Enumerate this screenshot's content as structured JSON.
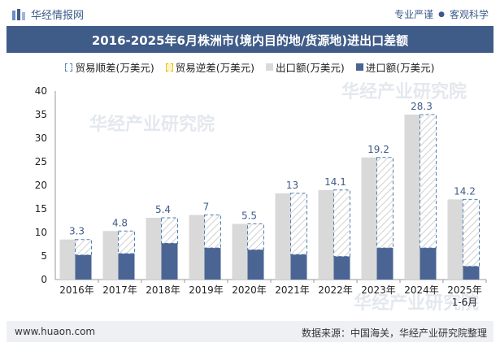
{
  "header": {
    "brand": "华经情报网",
    "tags": [
      "专业严谨",
      "客观科学"
    ]
  },
  "title": "2016-2025年6月株洲市(境内目的地/货源地)进出口差额",
  "legend": [
    {
      "key": "surplus",
      "label": "贸易顺差(万美元)"
    },
    {
      "key": "deficit",
      "label": "贸易逆差(万美元)"
    },
    {
      "key": "export",
      "label": "出口额(万美元)"
    },
    {
      "key": "import",
      "label": "进口额(万美元)"
    }
  ],
  "watermark": "华经产业研究院",
  "footer": {
    "site": "www.huaon.com",
    "source": "数据来源：中国海关，华经产业研究院整理"
  },
  "chart_data": {
    "type": "bar",
    "title": "2016-2025年6月株洲市(境内目的地/货源地)进出口差额",
    "categories": [
      "2016年",
      "2017年",
      "2018年",
      "2019年",
      "2020年",
      "2021年",
      "2022年",
      "2023年",
      "2024年",
      "2025年\n1-6月"
    ],
    "series": [
      {
        "name": "出口额(万美元)",
        "values": [
          8.5,
          10.3,
          13.1,
          13.7,
          11.8,
          18.3,
          19.0,
          25.9,
          35.0,
          17.0
        ]
      },
      {
        "name": "进口额(万美元)",
        "values": [
          5.2,
          5.5,
          7.7,
          6.7,
          6.3,
          5.3,
          4.9,
          6.7,
          6.7,
          2.8
        ]
      },
      {
        "name": "贸易顺差(万美元)",
        "values": [
          3.3,
          4.8,
          5.4,
          7,
          5.5,
          13,
          14.1,
          19.2,
          28.3,
          14.2
        ]
      },
      {
        "name": "贸易逆差(万美元)",
        "values": [
          0,
          0,
          0,
          0,
          0,
          0,
          0,
          0,
          0,
          0
        ]
      }
    ],
    "ylim": [
      0,
      40
    ],
    "yticks": [
      0,
      5,
      10,
      15,
      20,
      25,
      30,
      35,
      40
    ],
    "grid": false,
    "legend_position": "top",
    "colors": {
      "export": "#d9d9d9",
      "import": "#4a6494",
      "surplus_border": "#4a7fb5",
      "label": "#3f5b88"
    }
  }
}
